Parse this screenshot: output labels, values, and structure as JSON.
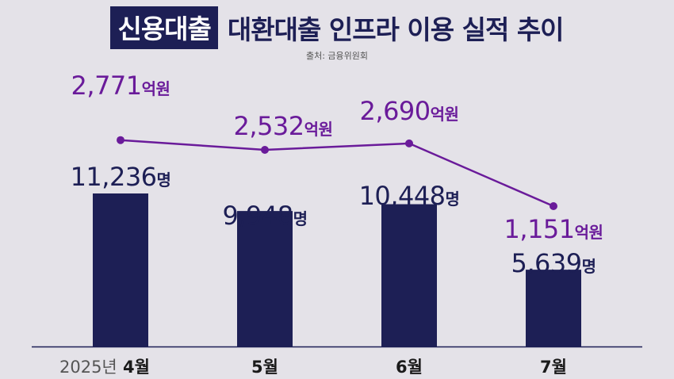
{
  "header": {
    "title_highlight": "신용대출",
    "title_rest": "대환대출 인프라 이용 실적 추이",
    "source": "출처: 금융위원회"
  },
  "colors": {
    "bar": "#1d1f55",
    "line": "#6a1b9a",
    "background": "#e4e2e8",
    "axis": "#1d1f55",
    "year_prefix": "#555555"
  },
  "chart_data": {
    "type": "bar",
    "categories": [
      "4월",
      "5월",
      "6월",
      "7월"
    ],
    "year_prefix": "2025년",
    "series": [
      {
        "type": "bar",
        "values": [
          11236,
          9948,
          10448,
          5639
        ],
        "labels": [
          "11,236",
          "9,948",
          "10,448",
          "5,639"
        ],
        "unit": "명"
      },
      {
        "type": "line",
        "values": [
          2771,
          2532,
          2690,
          1151
        ],
        "labels": [
          "2,771",
          "2,532",
          "2,690",
          "1,151"
        ],
        "unit": "억원"
      }
    ]
  }
}
